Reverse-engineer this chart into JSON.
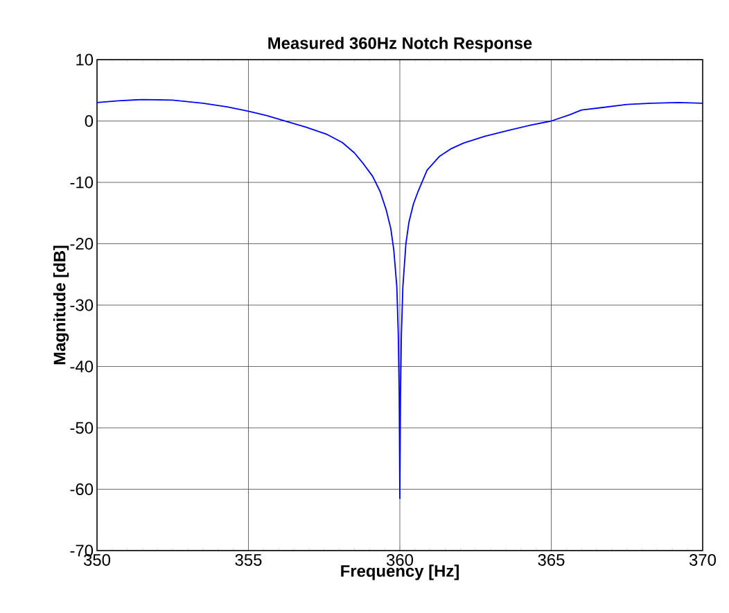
{
  "chart_data": {
    "type": "line",
    "title": "Measured 360Hz Notch Response",
    "xlabel": "Frequency [Hz]",
    "ylabel": "Magnitude [dB]",
    "x": [
      350,
      350.7,
      351.5,
      352.5,
      353.5,
      354.3,
      355,
      355.6,
      356.2,
      356.9,
      357.6,
      358.1,
      358.5,
      358.8,
      359.1,
      359.35,
      359.55,
      359.7,
      359.8,
      359.9,
      359.95,
      359.98,
      360,
      360.02,
      360.05,
      360.1,
      360.2,
      360.3,
      360.45,
      360.6,
      360.9,
      361.3,
      361.7,
      362.1,
      362.8,
      363.6,
      364.3,
      365,
      365.6,
      366,
      366.7,
      367.5,
      368.3,
      369.2,
      370
    ],
    "series": [
      {
        "color": "#0000ff",
        "values": [
          3.0,
          3.3,
          3.5,
          3.4,
          2.9,
          2.3,
          1.6,
          0.9,
          0,
          -1.0,
          -2.2,
          -3.5,
          -5.2,
          -7.0,
          -9.0,
          -11.5,
          -14.5,
          -17.5,
          -21,
          -27,
          -35,
          -45,
          -61.5,
          -45,
          -35,
          -27,
          -20,
          -16.5,
          -13.5,
          -11.5,
          -8,
          -5.8,
          -4.5,
          -3.6,
          -2.5,
          -1.5,
          -0.7,
          0,
          1.0,
          1.8,
          2.2,
          2.7,
          2.9,
          3.0,
          2.9
        ]
      }
    ],
    "xlim": [
      350,
      370
    ],
    "ylim": [
      -70,
      10
    ],
    "xticks": [
      350,
      355,
      360,
      365,
      370
    ],
    "yticks": [
      -70,
      -60,
      -50,
      -40,
      -30,
      -20,
      -10,
      0,
      10
    ],
    "grid": true,
    "marker": "none",
    "line_style": "solid"
  }
}
